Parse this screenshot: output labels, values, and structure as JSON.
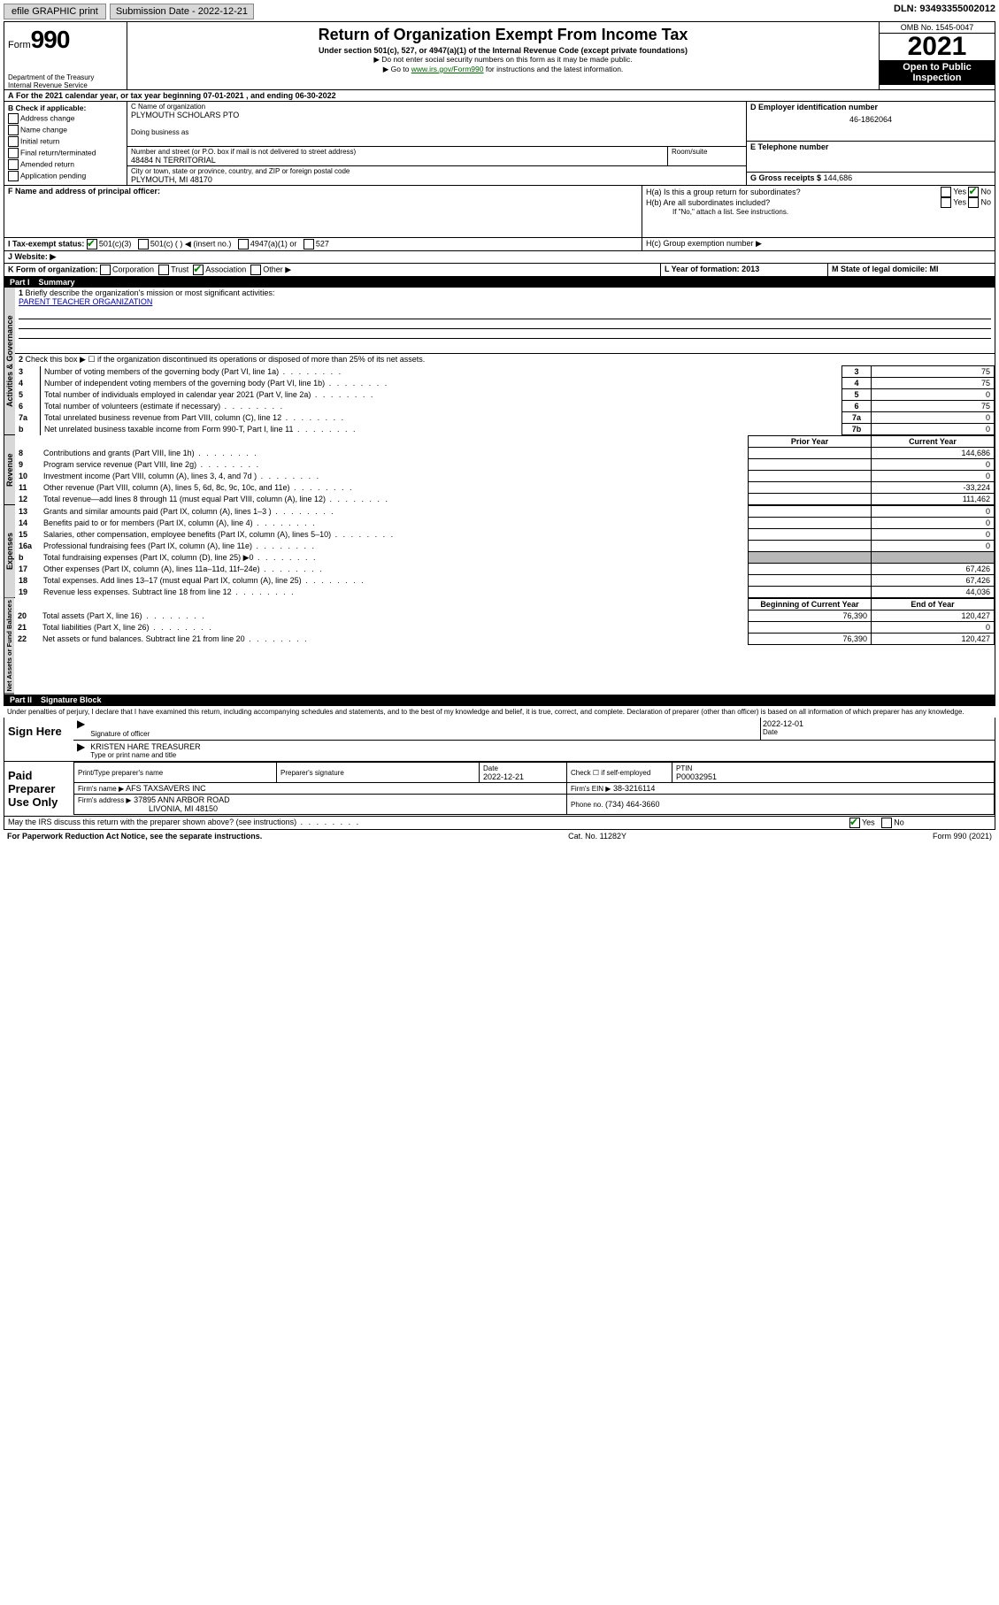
{
  "topbar": {
    "efile": "efile GRAPHIC print",
    "submission_label": "Submission Date - 2022-12-21",
    "dln": "DLN: 93493355002012"
  },
  "header": {
    "form_prefix": "Form",
    "form_number": "990",
    "dept": "Department of the Treasury",
    "irs": "Internal Revenue Service",
    "title": "Return of Organization Exempt From Income Tax",
    "subtitle1": "Under section 501(c), 527, or 4947(a)(1) of the Internal Revenue Code (except private foundations)",
    "subtitle2": "▶ Do not enter social security numbers on this form as it may be made public.",
    "subtitle3_pre": "▶ Go to ",
    "subtitle3_link": "www.irs.gov/Form990",
    "subtitle3_post": " for instructions and the latest information.",
    "omb": "OMB No. 1545-0047",
    "year": "2021",
    "inspection": "Open to Public Inspection"
  },
  "line_a": "For the 2021 calendar year, or tax year beginning 07-01-2021   , and ending 06-30-2022",
  "box_b": {
    "label": "B Check if applicable:",
    "items": [
      "Address change",
      "Name change",
      "Initial return",
      "Final return/terminated",
      "Amended return",
      "Application pending"
    ]
  },
  "box_c": {
    "label_name": "C Name of organization",
    "org_name": "PLYMOUTH SCHOLARS PTO",
    "dba_label": "Doing business as",
    "addr_label": "Number and street (or P.O. box if mail is not delivered to street address)",
    "room_label": "Room/suite",
    "street": "48484 N TERRITORIAL",
    "city_label": "City or town, state or province, country, and ZIP or foreign postal code",
    "city": "PLYMOUTH, MI  48170"
  },
  "box_d": {
    "label": "D Employer identification number",
    "value": "46-1862064"
  },
  "box_e": {
    "label": "E Telephone number",
    "value": ""
  },
  "box_g": {
    "label": "G Gross receipts $",
    "value": "144,686"
  },
  "box_f": {
    "label": "F  Name and address of principal officer:"
  },
  "box_h": {
    "ha": "H(a)  Is this a group return for subordinates?",
    "hb": "H(b)  Are all subordinates included?",
    "hb_note": "If \"No,\" attach a list. See instructions.",
    "hc": "H(c)  Group exemption number ▶",
    "yes": "Yes",
    "no": "No"
  },
  "box_i": {
    "label": "I   Tax-exempt status:",
    "opts": [
      "501(c)(3)",
      "501(c) (  ) ◀ (insert no.)",
      "4947(a)(1) or",
      "527"
    ]
  },
  "box_j": {
    "label": "J   Website: ▶"
  },
  "box_k": {
    "label": "K Form of organization:",
    "opts": [
      "Corporation",
      "Trust",
      "Association",
      "Other ▶"
    ]
  },
  "box_l": {
    "label": "L Year of formation: 2013"
  },
  "box_m": {
    "label": "M State of legal domicile: MI"
  },
  "part1": {
    "label": "Part I",
    "title": "Summary"
  },
  "tabs": {
    "gov": "Activities & Governance",
    "rev": "Revenue",
    "exp": "Expenses",
    "net": "Net Assets or Fund Balances"
  },
  "summary": {
    "l1": "Briefly describe the organization's mission or most significant activities:",
    "l1v": "PARENT TEACHER ORGANIZATION",
    "l2": "Check this box ▶ ☐  if the organization discontinued its operations or disposed of more than 25% of its net assets.",
    "rows_gov": [
      {
        "n": "3",
        "t": "Number of voting members of the governing body (Part VI, line 1a)",
        "box": "3",
        "v": "75"
      },
      {
        "n": "4",
        "t": "Number of independent voting members of the governing body (Part VI, line 1b)",
        "box": "4",
        "v": "75"
      },
      {
        "n": "5",
        "t": "Total number of individuals employed in calendar year 2021 (Part V, line 2a)",
        "box": "5",
        "v": "0"
      },
      {
        "n": "6",
        "t": "Total number of volunteers (estimate if necessary)",
        "box": "6",
        "v": "75"
      },
      {
        "n": "7a",
        "t": "Total unrelated business revenue from Part VIII, column (C), line 12",
        "box": "7a",
        "v": "0"
      },
      {
        "n": "b",
        "t": "Net unrelated business taxable income from Form 990-T, Part I, line 11",
        "box": "7b",
        "v": "0"
      }
    ],
    "col_prior": "Prior Year",
    "col_current": "Current Year",
    "rows_rev": [
      {
        "n": "8",
        "t": "Contributions and grants (Part VIII, line 1h)",
        "p": "",
        "c": "144,686"
      },
      {
        "n": "9",
        "t": "Program service revenue (Part VIII, line 2g)",
        "p": "",
        "c": "0"
      },
      {
        "n": "10",
        "t": "Investment income (Part VIII, column (A), lines 3, 4, and 7d )",
        "p": "",
        "c": "0"
      },
      {
        "n": "11",
        "t": "Other revenue (Part VIII, column (A), lines 5, 6d, 8c, 9c, 10c, and 11e)",
        "p": "",
        "c": "-33,224"
      },
      {
        "n": "12",
        "t": "Total revenue—add lines 8 through 11 (must equal Part VIII, column (A), line 12)",
        "p": "",
        "c": "111,462"
      }
    ],
    "rows_exp": [
      {
        "n": "13",
        "t": "Grants and similar amounts paid (Part IX, column (A), lines 1–3 )",
        "p": "",
        "c": "0"
      },
      {
        "n": "14",
        "t": "Benefits paid to or for members (Part IX, column (A), line 4)",
        "p": "",
        "c": "0"
      },
      {
        "n": "15",
        "t": "Salaries, other compensation, employee benefits (Part IX, column (A), lines 5–10)",
        "p": "",
        "c": "0"
      },
      {
        "n": "16a",
        "t": "Professional fundraising fees (Part IX, column (A), line 11e)",
        "p": "",
        "c": "0"
      },
      {
        "n": "b",
        "t": "Total fundraising expenses (Part IX, column (D), line 25) ▶0",
        "p": "gray",
        "c": "gray"
      },
      {
        "n": "17",
        "t": "Other expenses (Part IX, column (A), lines 11a–11d, 11f–24e)",
        "p": "",
        "c": "67,426"
      },
      {
        "n": "18",
        "t": "Total expenses. Add lines 13–17 (must equal Part IX, column (A), line 25)",
        "p": "",
        "c": "67,426"
      },
      {
        "n": "19",
        "t": "Revenue less expenses. Subtract line 18 from line 12",
        "p": "",
        "c": "44,036"
      }
    ],
    "col_begin": "Beginning of Current Year",
    "col_end": "End of Year",
    "rows_net": [
      {
        "n": "20",
        "t": "Total assets (Part X, line 16)",
        "p": "76,390",
        "c": "120,427"
      },
      {
        "n": "21",
        "t": "Total liabilities (Part X, line 26)",
        "p": "",
        "c": "0"
      },
      {
        "n": "22",
        "t": "Net assets or fund balances. Subtract line 21 from line 20",
        "p": "76,390",
        "c": "120,427"
      }
    ]
  },
  "part2": {
    "label": "Part II",
    "title": "Signature Block"
  },
  "penalty": "Under penalties of perjury, I declare that I have examined this return, including accompanying schedules and statements, and to the best of my knowledge and belief, it is true, correct, and complete. Declaration of preparer (other than officer) is based on all information of which preparer has any knowledge.",
  "sign": {
    "here": "Sign Here",
    "sig_officer": "Signature of officer",
    "date": "Date",
    "date_v": "2022-12-01",
    "name_v": "KRISTEN HARE  TREASURER",
    "name_label": "Type or print name and title"
  },
  "paid": {
    "label": "Paid Preparer Use Only",
    "cols": {
      "name": "Print/Type preparer's name",
      "sig": "Preparer's signature",
      "date": "Date",
      "date_v": "2022-12-21",
      "check": "Check ☐ if self-employed",
      "ptin": "PTIN",
      "ptin_v": "P00032951"
    },
    "firm_name_label": "Firm's name   ▶",
    "firm_name": "AFS TAXSAVERS INC",
    "firm_ein_label": "Firm's EIN ▶",
    "firm_ein": "38-3216114",
    "firm_addr_label": "Firm's address ▶",
    "firm_addr1": "37895 ANN ARBOR ROAD",
    "firm_addr2": "LIVONIA, MI  48150",
    "phone_label": "Phone no.",
    "phone": "(734) 464-3660"
  },
  "discuss": {
    "text": "May the IRS discuss this return with the preparer shown above? (see instructions)",
    "yes": "Yes",
    "no": "No"
  },
  "footer": {
    "left": "For Paperwork Reduction Act Notice, see the separate instructions.",
    "mid": "Cat. No. 11282Y",
    "right": "Form 990 (2021)"
  }
}
